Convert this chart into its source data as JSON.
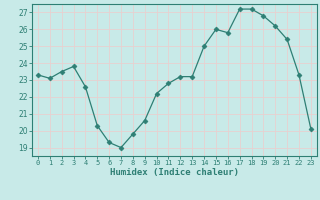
{
  "x": [
    0,
    1,
    2,
    3,
    4,
    5,
    6,
    7,
    8,
    9,
    10,
    11,
    12,
    13,
    14,
    15,
    16,
    17,
    18,
    19,
    20,
    21,
    22,
    23
  ],
  "y": [
    23.3,
    23.1,
    23.5,
    23.8,
    22.6,
    20.3,
    19.3,
    19.0,
    19.8,
    20.6,
    22.2,
    22.8,
    23.2,
    23.2,
    25.0,
    26.0,
    25.8,
    27.2,
    27.2,
    26.8,
    26.2,
    25.4,
    23.3,
    20.1
  ],
  "line_color": "#2e7f74",
  "marker": "D",
  "marker_size": 2.5,
  "bg_color": "#c8eae8",
  "grid_color": "#d4eded",
  "tick_color": "#2e7f74",
  "xlabel": "Humidex (Indice chaleur)",
  "ylabel_ticks": [
    19,
    20,
    21,
    22,
    23,
    24,
    25,
    26,
    27
  ],
  "xlim": [
    -0.5,
    23.5
  ],
  "ylim": [
    18.5,
    27.5
  ],
  "spine_color": "#2e7f74"
}
